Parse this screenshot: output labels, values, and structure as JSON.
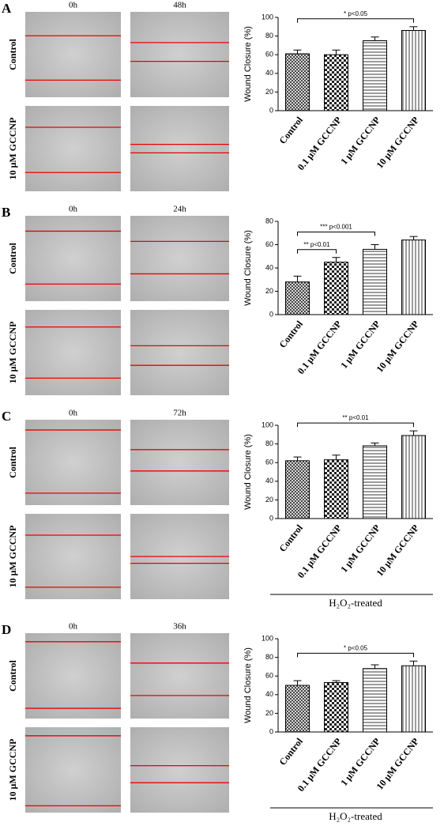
{
  "chart_data": [
    {
      "type": "bar",
      "panel": "A",
      "time_labels": [
        "0h",
        "48h"
      ],
      "row_labels": [
        "Control",
        "10 μM GCCNP"
      ],
      "y_label": "Wound Closure (%)",
      "categories": [
        "Control",
        "0.1 μM GCCNP",
        "1 μM GCCNP",
        "10 μM GCCNP"
      ],
      "values": [
        61,
        60,
        75,
        86
      ],
      "errors": [
        4,
        5,
        4,
        4
      ],
      "hatch": [
        "crosshatch",
        "checker",
        "horizontal",
        "vertical"
      ],
      "ylim": [
        0,
        100
      ],
      "yticks": [
        0,
        20,
        40,
        60,
        80,
        100
      ],
      "annotations": [
        {
          "text": "* p<0.05",
          "from": "Control",
          "to": "10 μM GCCNP"
        }
      ]
    },
    {
      "type": "bar",
      "panel": "B",
      "time_labels": [
        "0h",
        "24h"
      ],
      "row_labels": [
        "Control",
        "10 μM GCCNP"
      ],
      "y_label": "Wound Closure (%)",
      "categories": [
        "Control",
        "0.1 μM GCCNP",
        "1 μM GCCNP",
        "10 μM GCCNP"
      ],
      "values": [
        28,
        45,
        56,
        64
      ],
      "errors": [
        5,
        4,
        4,
        3
      ],
      "hatch": [
        "crosshatch",
        "checker",
        "horizontal",
        "vertical"
      ],
      "ylim": [
        0,
        80
      ],
      "yticks": [
        0,
        20,
        40,
        60,
        80
      ],
      "annotations": [
        {
          "text": "** p<0.01",
          "from": "Control",
          "to": "0.1 μM GCCNP"
        },
        {
          "text": "*** p<0.001",
          "from": "Control",
          "to": "1 μM GCCNP"
        }
      ]
    },
    {
      "type": "bar",
      "panel": "C",
      "time_labels": [
        "0h",
        "72h"
      ],
      "row_labels": [
        "Control",
        "10 μM GCCNP"
      ],
      "y_label": "Wound Closure (%)",
      "categories": [
        "Control",
        "0.1 μM GCCNP",
        "1 μM GCCNP",
        "10 μM GCCNP"
      ],
      "values": [
        62,
        63,
        78,
        89
      ],
      "errors": [
        4,
        5,
        3,
        5
      ],
      "hatch": [
        "crosshatch",
        "checker",
        "horizontal",
        "vertical"
      ],
      "ylim": [
        0,
        100
      ],
      "yticks": [
        0,
        20,
        40,
        60,
        80,
        100
      ],
      "annotations": [
        {
          "text": "** p<0.01",
          "from": "Control",
          "to": "10 μM GCCNP"
        }
      ],
      "footer": "H₂O₂-treated"
    },
    {
      "type": "bar",
      "panel": "D",
      "time_labels": [
        "0h",
        "36h"
      ],
      "row_labels": [
        "Control",
        "10 μM GCCNP"
      ],
      "y_label": "Wound Closure (%)",
      "categories": [
        "Control",
        "0.1 μM GCCNP",
        "1 μM GCCNP",
        "10 μM GCCNP"
      ],
      "values": [
        50,
        53,
        68,
        71
      ],
      "errors": [
        5,
        2,
        4,
        5
      ],
      "hatch": [
        "crosshatch",
        "checker",
        "horizontal",
        "vertical"
      ],
      "ylim": [
        0,
        100
      ],
      "yticks": [
        0,
        20,
        40,
        60,
        80,
        100
      ],
      "annotations": [
        {
          "text": "* p<0.05",
          "from": "Control",
          "to": "10 μM GCCNP"
        }
      ],
      "footer": "H₂O₂-treated"
    }
  ]
}
